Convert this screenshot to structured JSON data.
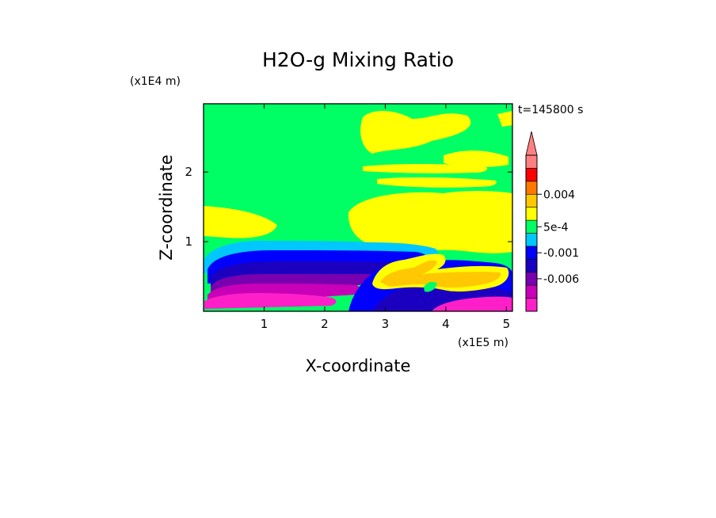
{
  "chart_data": {
    "type": "heatmap",
    "title": "H2O-g Mixing Ratio",
    "xlabel": "X-coordinate",
    "ylabel": "Z-coordinate",
    "x_unit": "(x1E5 m)",
    "y_unit": "(x1E4 m)",
    "time_label": "t=145800 s",
    "xlim": [
      0,
      5.1
    ],
    "ylim": [
      0,
      2.98
    ],
    "x_ticks": [
      "1",
      "2",
      "3",
      "4",
      "5"
    ],
    "y_ticks": [
      "1",
      "2"
    ],
    "colorbar": {
      "colors": [
        "#ff1fc8",
        "#c800b8",
        "#7800b0",
        "#1c00c0",
        "#0000ff",
        "#00c8ff",
        "#00ff64",
        "#ffff00",
        "#ffc800",
        "#ff7800",
        "#ff0000",
        "#ff8080"
      ],
      "labels": [
        "-0.006",
        "-0.001",
        "5e-4",
        "0.004"
      ],
      "label_levels": [
        2.5,
        4.5,
        6.5,
        9
      ],
      "extend": "max"
    },
    "grid": false
  }
}
